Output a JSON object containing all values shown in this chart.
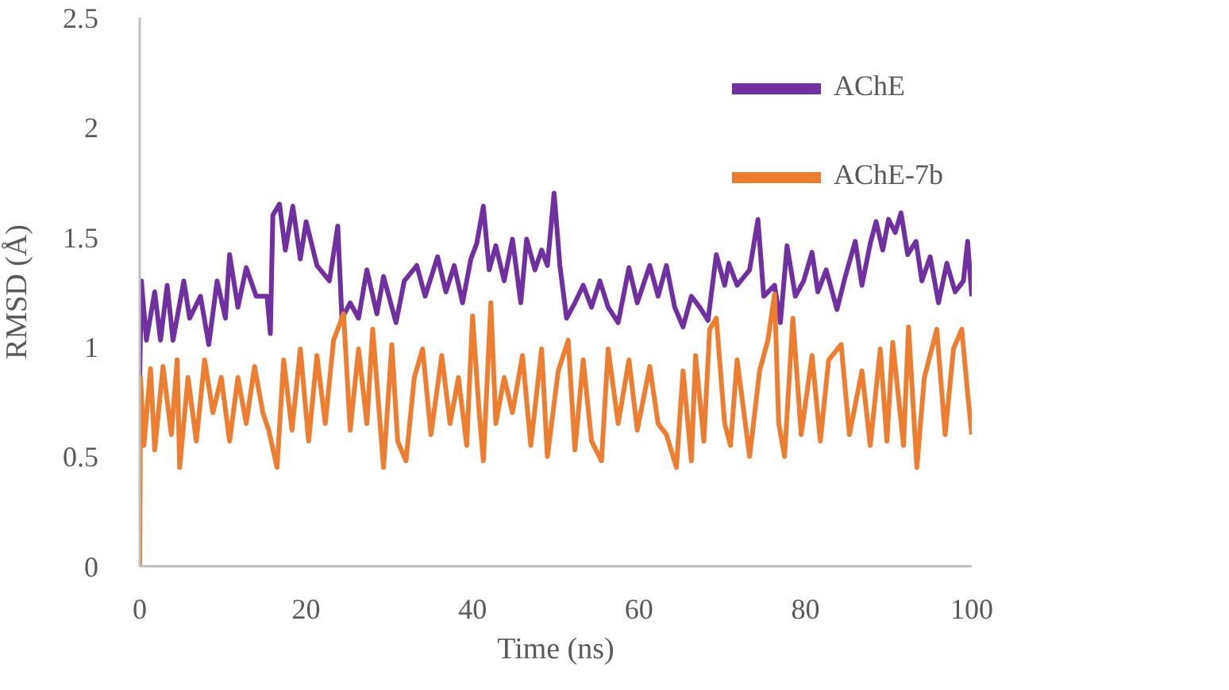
{
  "chart_data": {
    "type": "line",
    "xlabel": "Time (ns)",
    "ylabel": "RMSD (Å)",
    "xlim": [
      0,
      100
    ],
    "xticks": [
      0,
      20,
      40,
      60,
      80,
      100
    ],
    "ylim": [
      0,
      2.5
    ],
    "yticks": [
      0,
      0.5,
      1,
      1.5,
      2,
      2.5
    ],
    "grid": false,
    "legend": "top right",
    "marker": "none",
    "line_style": "solid",
    "series": [
      {
        "name": "AChE",
        "color": "#7030a0",
        "x": [
          0,
          0.2,
          0.8,
          1.8,
          2.5,
          3.3,
          4.0,
          5.3,
          6.0,
          7.3,
          8.3,
          9.3,
          10.3,
          10.8,
          11.8,
          12.8,
          14.0,
          15.3,
          15.7,
          16.0,
          16.8,
          17.5,
          18.4,
          19.3,
          20.0,
          21.3,
          22.8,
          23.8,
          24.3,
          25.3,
          26.3,
          27.3,
          28.5,
          29.3,
          30.8,
          31.8,
          33.3,
          34.3,
          35.8,
          36.8,
          37.8,
          38.8,
          39.8,
          40.5,
          41.3,
          42.0,
          42.8,
          43.8,
          44.8,
          45.8,
          46.5,
          47.5,
          48.3,
          49.0,
          49.8,
          50.5,
          51.3,
          52.3,
          53.3,
          54.3,
          55.3,
          56.3,
          57.5,
          58.8,
          59.8,
          61.3,
          62.3,
          63.3,
          64.3,
          65.3,
          66.3,
          67.3,
          68.3,
          69.3,
          70.3,
          70.8,
          71.8,
          73.3,
          74.3,
          75.0,
          76.3,
          77.0,
          77.8,
          78.8,
          79.8,
          80.8,
          81.5,
          82.5,
          83.8,
          84.8,
          86.0,
          86.8,
          87.8,
          88.5,
          89.3,
          90.0,
          90.8,
          91.5,
          92.3,
          93.3,
          94.0,
          95.0,
          96.0,
          97.0,
          98.0,
          99.0,
          99.5,
          100
        ],
        "values": [
          0.86,
          1.3,
          1.03,
          1.25,
          1.03,
          1.28,
          1.03,
          1.3,
          1.13,
          1.23,
          1.01,
          1.3,
          1.13,
          1.42,
          1.18,
          1.36,
          1.23,
          1.23,
          1.06,
          1.6,
          1.65,
          1.44,
          1.64,
          1.4,
          1.57,
          1.37,
          1.3,
          1.55,
          1.13,
          1.2,
          1.13,
          1.35,
          1.15,
          1.32,
          1.11,
          1.3,
          1.37,
          1.23,
          1.41,
          1.25,
          1.37,
          1.2,
          1.4,
          1.47,
          1.64,
          1.35,
          1.46,
          1.3,
          1.49,
          1.2,
          1.49,
          1.35,
          1.44,
          1.37,
          1.7,
          1.37,
          1.13,
          1.2,
          1.28,
          1.18,
          1.3,
          1.18,
          1.11,
          1.36,
          1.2,
          1.37,
          1.23,
          1.37,
          1.18,
          1.09,
          1.23,
          1.18,
          1.12,
          1.42,
          1.28,
          1.38,
          1.28,
          1.35,
          1.58,
          1.23,
          1.28,
          1.11,
          1.46,
          1.23,
          1.3,
          1.43,
          1.25,
          1.35,
          1.17,
          1.32,
          1.48,
          1.28,
          1.47,
          1.57,
          1.44,
          1.58,
          1.52,
          1.61,
          1.42,
          1.48,
          1.3,
          1.41,
          1.2,
          1.38,
          1.25,
          1.3,
          1.48,
          1.23
        ]
      },
      {
        "name": "AChE-7b",
        "color": "#ed7d31",
        "x": [
          0,
          0.1,
          0.5,
          1.3,
          1.8,
          2.8,
          3.8,
          4.5,
          4.8,
          5.8,
          6.8,
          7.8,
          8.8,
          9.8,
          10.8,
          11.8,
          12.8,
          13.8,
          14.8,
          15.5,
          16.5,
          17.3,
          18.3,
          19.3,
          20.3,
          21.3,
          22.3,
          23.3,
          24.5,
          25.3,
          26.3,
          27.3,
          28.0,
          29.3,
          30.3,
          31.0,
          32.0,
          33.0,
          34.0,
          35.0,
          36.3,
          37.3,
          38.3,
          39.3,
          40.0,
          40.8,
          41.3,
          42.2,
          42.8,
          43.8,
          44.8,
          46.0,
          47.0,
          48.3,
          49.0,
          50.3,
          51.5,
          52.3,
          53.3,
          54.3,
          55.5,
          56.3,
          57.5,
          58.8,
          59.8,
          61.3,
          62.3,
          63.3,
          64.5,
          65.3,
          66.3,
          66.8,
          67.8,
          68.5,
          69.3,
          70.3,
          71.0,
          71.8,
          73.3,
          74.5,
          75.5,
          76.3,
          76.8,
          77.5,
          78.5,
          79.5,
          80.8,
          81.8,
          82.8,
          84.3,
          85.3,
          86.8,
          87.8,
          89.0,
          89.8,
          90.5,
          91.8,
          92.4,
          93.4,
          94.3,
          95.8,
          96.8,
          97.8,
          98.8,
          99.5,
          100
        ],
        "values": [
          0,
          0.86,
          0.55,
          0.9,
          0.53,
          0.91,
          0.6,
          0.94,
          0.45,
          0.86,
          0.57,
          0.94,
          0.7,
          0.86,
          0.57,
          0.86,
          0.65,
          0.91,
          0.7,
          0.62,
          0.45,
          0.94,
          0.62,
          0.99,
          0.57,
          0.96,
          0.65,
          1.03,
          1.15,
          0.62,
          0.99,
          0.65,
          1.08,
          0.45,
          1.01,
          0.57,
          0.48,
          0.86,
          0.99,
          0.6,
          0.96,
          0.65,
          0.86,
          0.55,
          1.14,
          0.7,
          0.48,
          1.2,
          0.65,
          0.86,
          0.7,
          0.96,
          0.55,
          0.99,
          0.5,
          0.89,
          1.03,
          0.53,
          0.94,
          0.57,
          0.48,
          0.99,
          0.65,
          0.94,
          0.62,
          0.91,
          0.65,
          0.6,
          0.45,
          0.89,
          0.48,
          0.96,
          0.57,
          1.08,
          1.13,
          0.65,
          0.55,
          0.94,
          0.5,
          0.89,
          1.03,
          1.24,
          0.65,
          0.5,
          1.13,
          0.6,
          0.96,
          0.57,
          0.94,
          1.01,
          0.6,
          0.89,
          0.55,
          0.99,
          0.57,
          1.02,
          0.55,
          1.09,
          0.45,
          0.86,
          1.08,
          0.6,
          0.99,
          1.08,
          0.79,
          0.6
        ]
      }
    ]
  }
}
